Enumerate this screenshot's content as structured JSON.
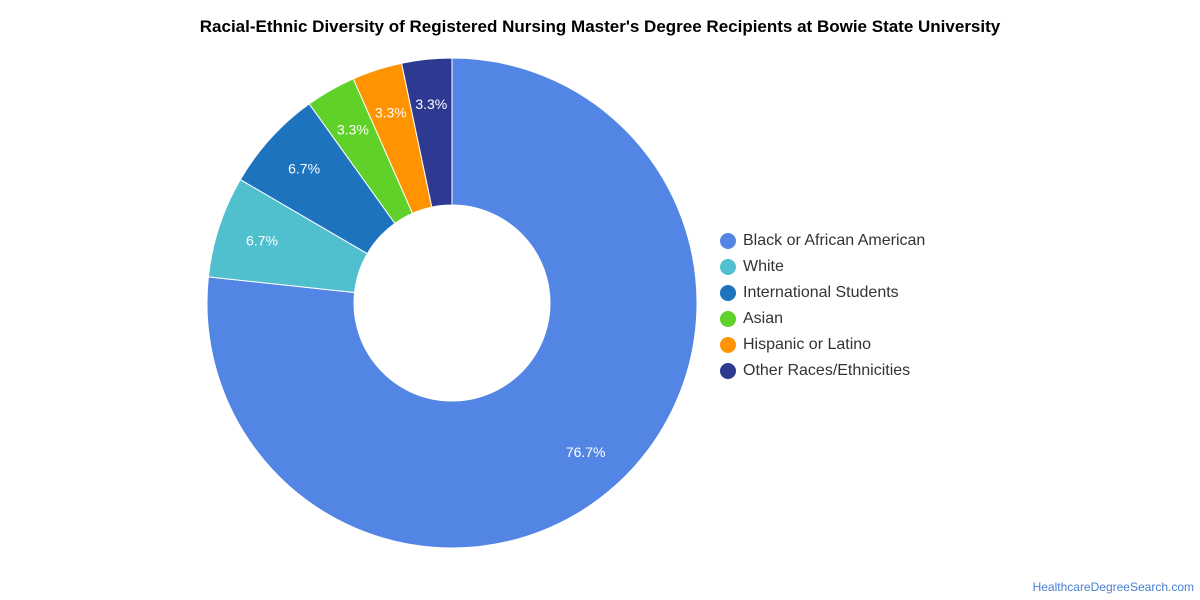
{
  "chart_data": {
    "type": "pie",
    "title": "Racial-Ethnic Diversity of Registered Nursing Master's Degree Recipients at Bowie State University",
    "donut": true,
    "legend_position": "right",
    "slices": [
      {
        "label": "Black or African American",
        "value": 76.7,
        "display": "76.7%",
        "color": "#5386e4"
      },
      {
        "label": "White",
        "value": 6.7,
        "display": "6.7%",
        "color": "#50c0cf"
      },
      {
        "label": "International Students",
        "value": 6.7,
        "display": "6.7%",
        "color": "#1e73be"
      },
      {
        "label": "Asian",
        "value": 3.3,
        "display": "3.3%",
        "color": "#5fd128"
      },
      {
        "label": "Hispanic or Latino",
        "value": 3.3,
        "display": "3.3%",
        "color": "#ff9400"
      },
      {
        "label": "Other Races/Ethnicities",
        "value": 3.3,
        "display": "3.3%",
        "color": "#2e3a91"
      }
    ]
  },
  "footer": {
    "source": "HealthcareDegreeSearch.com"
  }
}
